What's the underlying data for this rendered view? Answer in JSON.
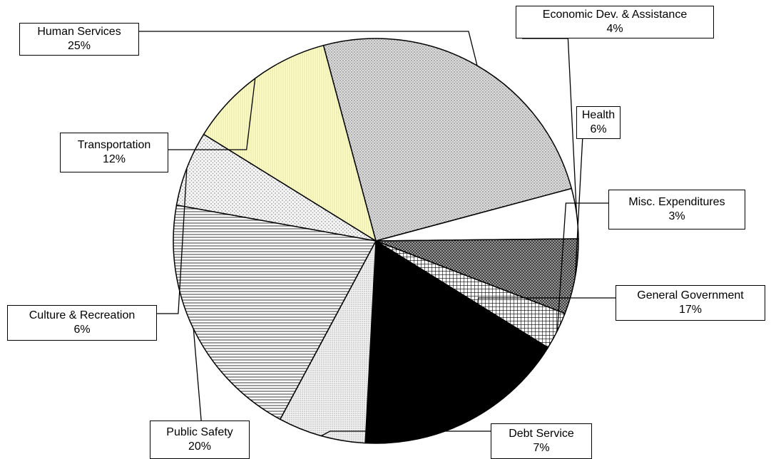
{
  "chart_data": {
    "type": "pie",
    "title": "",
    "slices": [
      {
        "label": "Human Services",
        "value": 25,
        "pct_label": "25%",
        "color": "#d9d9d9",
        "pattern": "dots"
      },
      {
        "label": "Economic Dev. & Assistance",
        "value": 4,
        "pct_label": "4%",
        "color": "#ffffff",
        "pattern": "none"
      },
      {
        "label": "Health",
        "value": 6,
        "pct_label": "6%",
        "color": "#8c8c8c",
        "pattern": "cross-dense"
      },
      {
        "label": "Misc. Expenditures",
        "value": 3,
        "pct_label": "3%",
        "color": "#ffffff",
        "pattern": "grid"
      },
      {
        "label": "General Government",
        "value": 17,
        "pct_label": "17%",
        "color": "#000000",
        "pattern": "solid"
      },
      {
        "label": "Debt Service",
        "value": 7,
        "pct_label": "7%",
        "color": "#e8e8e8",
        "pattern": "fine-dots"
      },
      {
        "label": "Public Safety",
        "value": 20,
        "pct_label": "20%",
        "color": "#ffffff",
        "pattern": "horizontal-lines"
      },
      {
        "label": "Culture & Recreation",
        "value": 6,
        "pct_label": "6%",
        "color": "#ececec",
        "pattern": "sparse-dots"
      },
      {
        "label": "Transportation",
        "value": 12,
        "pct_label": "12%",
        "color": "#ffffc0",
        "pattern": "vertical-lines"
      }
    ]
  }
}
